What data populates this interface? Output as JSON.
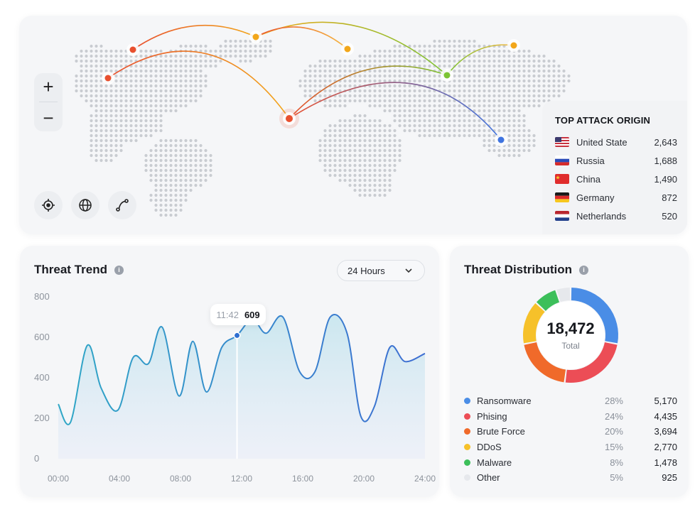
{
  "map": {
    "zoom_in_label": "+",
    "zoom_out_label": "−",
    "arc_colors": [
      "#e8502f",
      "#f2a71b",
      "#7cc433",
      "#3f74e0",
      "#f5b841"
    ],
    "tools": [
      "crosshair-icon",
      "globe-icon",
      "route-icon"
    ]
  },
  "top_attack_origin": {
    "title": "TOP ATTACK ORIGIN",
    "rows": [
      {
        "country": "United State",
        "value": "2,643",
        "flag": "us-flag-icon"
      },
      {
        "country": "Russia",
        "value": "1,688",
        "flag": "ru-flag-icon"
      },
      {
        "country": "China",
        "value": "1,490",
        "flag": "cn-flag-icon"
      },
      {
        "country": "Germany",
        "value": "872",
        "flag": "de-flag-icon"
      },
      {
        "country": "Netherlands",
        "value": "520",
        "flag": "nl-flag-icon"
      }
    ]
  },
  "threat_trend": {
    "title": "Threat Trend",
    "range": "24 Hours",
    "tooltip": {
      "time": "11:42",
      "value": "609"
    },
    "accent": "#3a8fd6"
  },
  "threat_distribution": {
    "title": "Threat Distribution",
    "total": "18,472",
    "total_label": "Total",
    "items": [
      {
        "name": "Ransomware",
        "pct": "28%",
        "value": "5,170",
        "color": "#4a8de6"
      },
      {
        "name": "Phising",
        "pct": "24%",
        "value": "4,435",
        "color": "#ec4d56"
      },
      {
        "name": "Brute Force",
        "pct": "20%",
        "value": "3,694",
        "color": "#f06a2a"
      },
      {
        "name": "DDoS",
        "pct": "15%",
        "value": "2,770",
        "color": "#f6c12a"
      },
      {
        "name": "Malware",
        "pct": "8%",
        "value": "1,478",
        "color": "#3cbf5a"
      },
      {
        "name": "Other",
        "pct": "5%",
        "value": "925",
        "color": "#e6e8ec"
      }
    ]
  },
  "chart_data": {
    "type": "line",
    "x_ticks": [
      "00:00",
      "04:00",
      "08:00",
      "12:00",
      "16:00",
      "20:00",
      "24:00"
    ],
    "y_ticks": [
      "800",
      "600",
      "400",
      "200",
      "0"
    ],
    "ylim": [
      0,
      800
    ],
    "xlim": [
      0,
      24
    ],
    "points": [
      [
        0,
        270
      ],
      [
        0.8,
        180
      ],
      [
        1.9,
        560
      ],
      [
        2.8,
        350
      ],
      [
        3.9,
        240
      ],
      [
        4.9,
        500
      ],
      [
        5.9,
        470
      ],
      [
        6.8,
        650
      ],
      [
        7.9,
        310
      ],
      [
        8.8,
        580
      ],
      [
        9.7,
        330
      ],
      [
        10.7,
        550
      ],
      [
        11.7,
        609
      ],
      [
        12.7,
        690
      ],
      [
        13.6,
        620
      ],
      [
        14.7,
        700
      ],
      [
        15.8,
        430
      ],
      [
        16.8,
        430
      ],
      [
        17.8,
        700
      ],
      [
        18.9,
        620
      ],
      [
        19.8,
        210
      ],
      [
        20.7,
        260
      ],
      [
        21.7,
        550
      ],
      [
        22.7,
        480
      ],
      [
        24,
        520
      ]
    ],
    "highlight": {
      "x": 11.7,
      "y": 609
    }
  }
}
